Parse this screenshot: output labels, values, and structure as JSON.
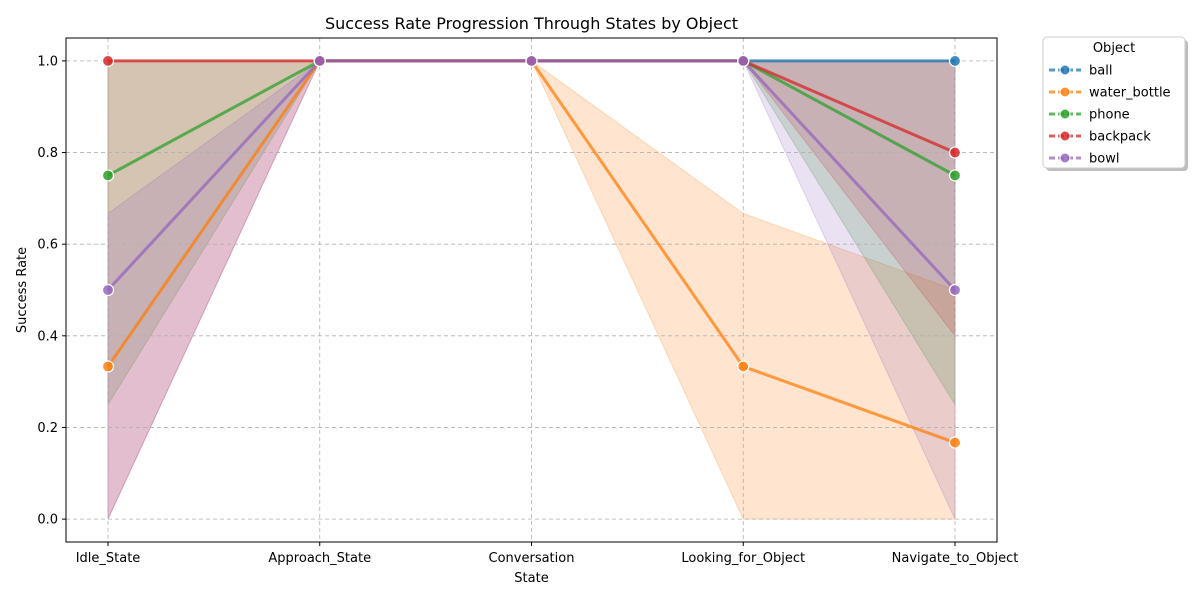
{
  "chart_data": {
    "type": "line",
    "title": "Success Rate Progression Through States by Object",
    "xlabel": "State",
    "ylabel": "Success Rate",
    "categories": [
      "Idle_State",
      "Approach_State",
      "Conversation",
      "Looking_for_Object",
      "Navigate_to_Object"
    ],
    "ylim": [
      -0.05,
      1.05
    ],
    "yticks": [
      "0.0",
      "0.2",
      "0.4",
      "0.6",
      "0.8",
      "1.0"
    ],
    "grid": true,
    "legend_title": "Object",
    "legend_position": "outside-top-right",
    "series": [
      {
        "name": " ball",
        "color": "#1f77b4",
        "values": [
          null,
          1.0,
          1.0,
          1.0,
          1.0
        ],
        "band_lower": [
          null,
          1.0,
          1.0,
          1.0,
          1.0
        ],
        "band_upper": [
          null,
          1.0,
          1.0,
          1.0,
          1.0
        ]
      },
      {
        "name": " water_bottle",
        "color": "#ff7f0e",
        "values": [
          0.333,
          1.0,
          1.0,
          0.333,
          0.167
        ],
        "band_lower": [
          0.333,
          1.0,
          1.0,
          0.0,
          0.0
        ],
        "band_upper": [
          0.333,
          1.0,
          1.0,
          0.667,
          0.5
        ]
      },
      {
        "name": " phone",
        "color": "#2ca02c",
        "values": [
          0.75,
          1.0,
          1.0,
          1.0,
          0.75
        ],
        "band_lower": [
          0.25,
          1.0,
          1.0,
          1.0,
          0.25
        ],
        "band_upper": [
          1.0,
          1.0,
          1.0,
          1.0,
          1.0
        ]
      },
      {
        "name": " backpack",
        "color": "#d62728",
        "values": [
          1.0,
          1.0,
          1.0,
          1.0,
          0.8
        ],
        "band_lower": [
          0.0,
          1.0,
          1.0,
          1.0,
          0.4
        ],
        "band_upper": [
          1.0,
          1.0,
          1.0,
          1.0,
          1.0
        ]
      },
      {
        "name": " bowl",
        "color": "#9467bd",
        "values": [
          0.5,
          1.0,
          1.0,
          1.0,
          0.5
        ],
        "band_lower": [
          0.0,
          1.0,
          1.0,
          1.0,
          0.0
        ],
        "band_upper": [
          0.667,
          1.0,
          1.0,
          1.0,
          1.0
        ]
      }
    ]
  }
}
